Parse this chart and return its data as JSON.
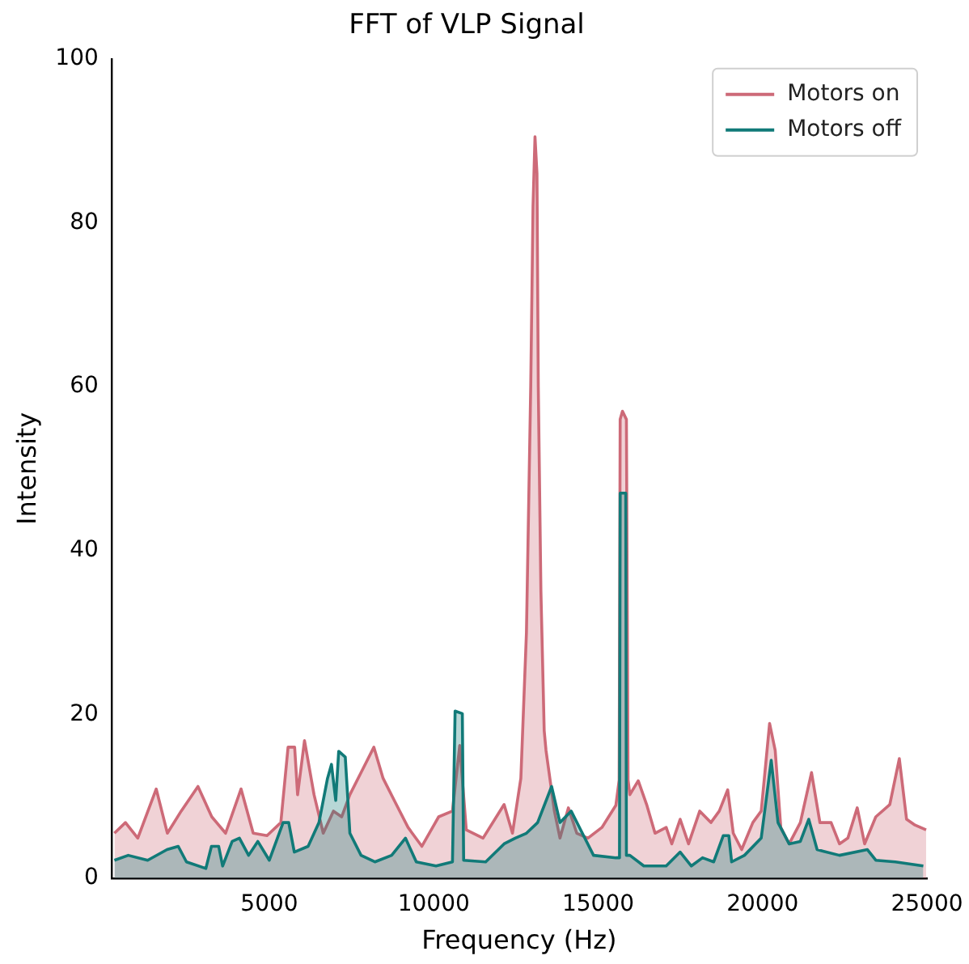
{
  "chart_data": {
    "type": "area",
    "title": "FFT of VLP Signal",
    "xlabel": "Frequency (Hz)",
    "ylabel": "Intensity",
    "xlim": [
      200,
      25000
    ],
    "xticks": [
      5000,
      10000,
      15000,
      20000,
      25000
    ],
    "ylim": [
      0,
      100
    ],
    "yticks": [
      0,
      20,
      40,
      60,
      80,
      100
    ],
    "grid": false,
    "legend": "top right",
    "marker": "none",
    "series": [
      {
        "name": "Motors on",
        "color": "#cd6a78",
        "x": [
          288,
          624,
          1000,
          1560,
          1900,
          2320,
          2830,
          3250,
          3670,
          4140,
          4510,
          4930,
          5350,
          5570,
          5770,
          5860,
          6070,
          6360,
          6640,
          6950,
          7200,
          7450,
          7790,
          8180,
          8460,
          8800,
          9220,
          9640,
          10150,
          10570,
          10790,
          10990,
          11500,
          12140,
          12395,
          12650,
          12820,
          12950,
          13020,
          13080,
          13140,
          13180,
          13260,
          13360,
          13415,
          13670,
          13840,
          14095,
          14350,
          14690,
          15115,
          15540,
          15640,
          15670,
          15740,
          15860,
          15910,
          15965,
          16220,
          16475,
          16730,
          17070,
          17240,
          17495,
          17750,
          18090,
          18430,
          18685,
          18940,
          19110,
          19365,
          19705,
          19960,
          20215,
          20385,
          20555,
          20810,
          21150,
          21490,
          21745,
          22085,
          22340,
          22595,
          22880,
          23105,
          23445,
          23870,
          24160,
          24380,
          24635,
          24975
        ],
        "values": [
          5.5,
          6.8,
          4.9,
          10.9,
          5.5,
          8.2,
          11.2,
          7.5,
          5.5,
          10.9,
          5.5,
          5.2,
          6.8,
          16,
          16,
          10.2,
          16.8,
          10.2,
          5.5,
          8.2,
          7.5,
          10.2,
          12.9,
          16,
          12.2,
          9.5,
          6.2,
          3.9,
          7.5,
          8.2,
          16.2,
          5.9,
          4.9,
          9,
          5.5,
          12.2,
          30,
          60,
          82,
          90.5,
          86,
          60,
          35,
          18,
          15.6,
          8.2,
          4.9,
          8.6,
          5.5,
          4.9,
          6.2,
          8.9,
          12,
          56,
          57,
          56,
          12,
          10.2,
          11.9,
          9,
          5.5,
          6.2,
          4.2,
          7.2,
          4.2,
          8.2,
          6.8,
          8.2,
          10.8,
          5.5,
          3.5,
          6.8,
          8.2,
          18.9,
          15.6,
          6.2,
          4.2,
          6.8,
          12.9,
          6.8,
          6.8,
          4.2,
          4.9,
          8.6,
          4.2,
          7.5,
          9,
          14.6,
          7.2,
          6.5,
          5.9
        ]
      },
      {
        "name": "Motors off",
        "color": "#117a78",
        "x": [
          288,
          710,
          1300,
          1890,
          2230,
          2480,
          3070,
          3240,
          3460,
          3580,
          3870,
          4090,
          4370,
          4650,
          5000,
          5420,
          5590,
          5760,
          6180,
          6510,
          6770,
          6890,
          7020,
          7110,
          7310,
          7450,
          7790,
          8210,
          8720,
          9140,
          9470,
          10070,
          10570,
          10650,
          10870,
          10910,
          11580,
          12140,
          12480,
          12820,
          13160,
          13585,
          13840,
          14180,
          14520,
          14860,
          15540,
          15650,
          15670,
          15840,
          15860,
          15965,
          16390,
          17070,
          17495,
          17835,
          18175,
          18515,
          18805,
          18975,
          19060,
          19450,
          19960,
          20265,
          20470,
          20810,
          21150,
          21405,
          21660,
          22340,
          23190,
          23445,
          24040,
          24890
        ],
        "values": [
          2.2,
          2.8,
          2.2,
          3.5,
          3.9,
          2,
          1.2,
          3.9,
          3.9,
          1.5,
          4.5,
          4.9,
          2.8,
          4.5,
          2.2,
          6.8,
          6.8,
          3.2,
          3.9,
          6.8,
          12.2,
          13.9,
          9.5,
          15.5,
          14.8,
          5.5,
          2.8,
          2,
          2.8,
          4.9,
          2,
          1.5,
          2,
          20.4,
          20.1,
          2.2,
          2,
          4.2,
          4.9,
          5.5,
          6.8,
          11.2,
          6.8,
          8.2,
          5.5,
          2.8,
          2.5,
          2.5,
          47,
          47,
          2.8,
          2.8,
          1.5,
          1.5,
          3.2,
          1.5,
          2.5,
          2,
          5.2,
          5.2,
          2,
          2.8,
          4.9,
          14.4,
          6.8,
          4.2,
          4.5,
          7.2,
          3.5,
          2.8,
          3.5,
          2.2,
          2,
          1.5
        ]
      }
    ]
  }
}
